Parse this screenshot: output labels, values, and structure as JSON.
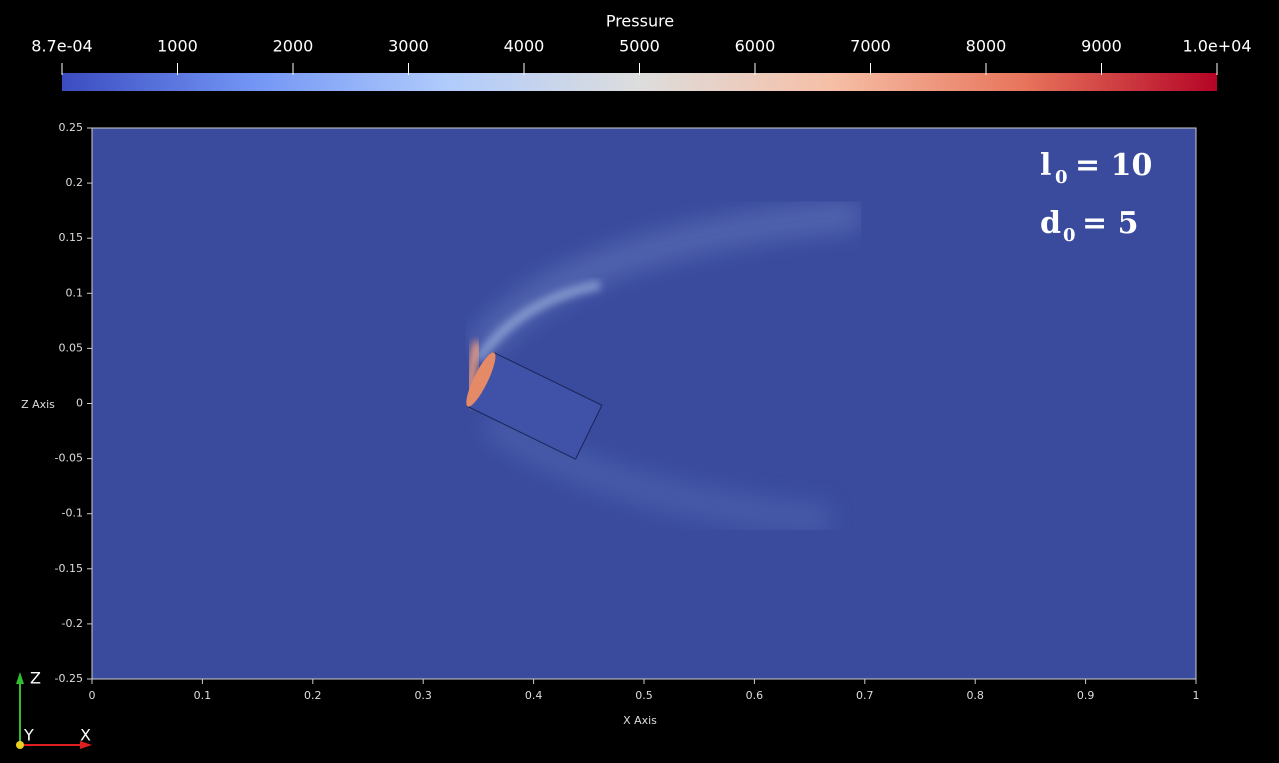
{
  "colorbar": {
    "title": "Pressure",
    "range": [
      0.00087,
      10000
    ],
    "ticks": [
      {
        "value": 0.00087,
        "label": "8.7e-04"
      },
      1000,
      2000,
      3000,
      4000,
      5000,
      6000,
      7000,
      8000,
      9000,
      {
        "value": 10000,
        "label": "1.0e+04"
      }
    ],
    "colors": [
      "#3b4cc0",
      "#7396f5",
      "#b0cbfc",
      "#dddddd",
      "#f6bfa6",
      "#e7745b",
      "#b40426"
    ]
  },
  "plot": {
    "xlabel": "X Axis",
    "ylabel": "Z Axis",
    "xlim": [
      0,
      1
    ],
    "ylim": [
      -0.25,
      0.25
    ],
    "xticks": [
      0,
      0.1,
      0.2,
      0.3,
      0.4,
      0.5,
      0.6,
      0.7,
      0.8,
      0.9,
      1
    ],
    "yticks": [
      0.25,
      0.2,
      0.15,
      0.1,
      0.05,
      0,
      -0.05,
      -0.1,
      -0.15,
      -0.2,
      -0.25
    ],
    "background": "#3a4b9e"
  },
  "annotations": [
    {
      "symbol": "l",
      "subscript": "0",
      "text": "= 10"
    },
    {
      "symbol": "d",
      "subscript": "0",
      "text": "=  5"
    }
  ],
  "orientation": {
    "z": "Z",
    "y": "Y",
    "x": "X"
  }
}
